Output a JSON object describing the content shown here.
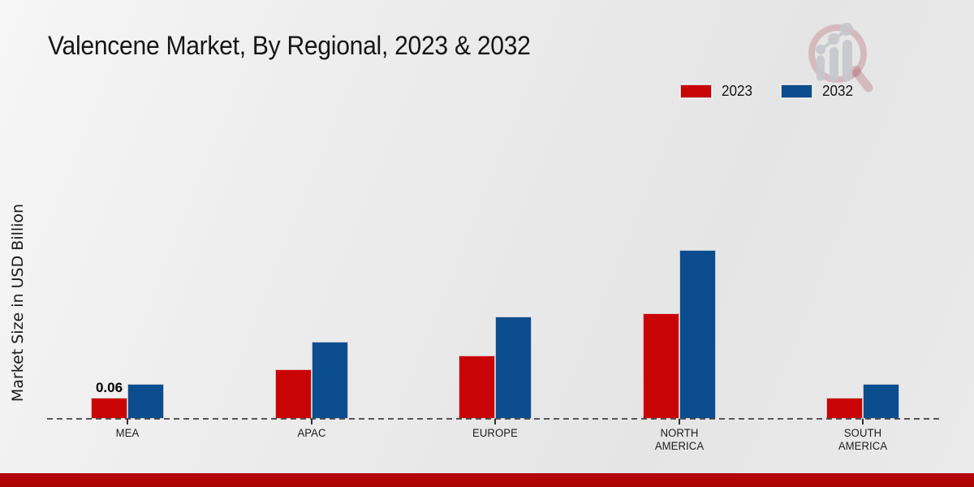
{
  "title": "Valencene Market, By Regional, 2023 & 2032",
  "legend": [
    {
      "label": "2023",
      "color": "#c90404"
    },
    {
      "label": "2032",
      "color": "#0b4d8e"
    }
  ],
  "footer": {
    "color": "#b80606"
  },
  "watermark_icon": "magnifier-growth-chart-logo",
  "chart_data": {
    "type": "bar",
    "title": "Valencene Market, By Regional, 2023 & 2032",
    "categories": [
      "MEA",
      "APAC",
      "EUROPE",
      "NORTH AMERICA",
      "SOUTH AMERICA"
    ],
    "series": [
      {
        "name": "2023",
        "color": "#c90404",
        "values": [
          0.06,
          0.14,
          0.18,
          0.3,
          0.06
        ],
        "value_labels": [
          "0.06",
          "",
          "",
          "",
          ""
        ]
      },
      {
        "name": "2032",
        "color": "#0b4d8e",
        "values": [
          0.1,
          0.22,
          0.29,
          0.48,
          0.1
        ],
        "value_labels": [
          "",
          "",
          "",
          "",
          ""
        ]
      }
    ],
    "xlabel": "",
    "ylabel": "Market Size in USD Billion",
    "ylim": [
      0,
      0.55
    ],
    "grid": false,
    "axis_style": "dashed-baseline-only",
    "legend_position": "top-right"
  }
}
